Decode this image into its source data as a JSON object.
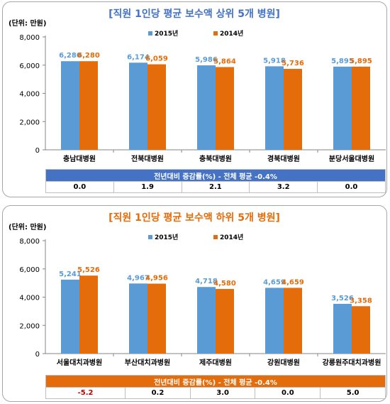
{
  "chart_data": [
    {
      "type": "bar",
      "title": "[직원 1인당 평균 보수액 상위 5개 병원]",
      "unit_label": "(단위: 만원)",
      "categories": [
        "충남대병원",
        "전북대병원",
        "충북대병원",
        "경북대병원",
        "분당서울대병원"
      ],
      "series": [
        {
          "name": "2015년",
          "color": "#5b9bd5",
          "label_color": "#5b9bd5",
          "values": [
            6280,
            6174,
            5986,
            5918,
            5895
          ]
        },
        {
          "name": "2014년",
          "color": "#e46c0a",
          "label_color": "#e46c0a",
          "values": [
            6280,
            6059,
            5864,
            5736,
            5895
          ]
        }
      ],
      "ylim": [
        0,
        8000
      ],
      "yticks": [
        0,
        2000,
        4000,
        6000,
        8000
      ],
      "ytick_labels": [
        "0",
        "2,000",
        "4,000",
        "6,000",
        "8,000"
      ],
      "value_labels_2015": [
        "6,280",
        "6,174",
        "5,986",
        "5,918",
        "5,895"
      ],
      "value_labels_2014": [
        "6,280",
        "6,059",
        "5,864",
        "5,736",
        "5,895"
      ],
      "legend_position": "top",
      "title_color": "#4472c4",
      "table": {
        "header": "전년대비 증감률(%) - 전체 평균 -0.4%",
        "values": [
          "0.0",
          "1.9",
          "2.1",
          "3.2",
          "0.0"
        ]
      }
    },
    {
      "type": "bar",
      "title": "[직원 1인당 평균 보수액 하위 5개 병원]",
      "unit_label": "(단위: 만원)",
      "categories": [
        "서울대치과병원",
        "부산대치과병원",
        "제주대병원",
        "강원대병원",
        "강릉원주대치과병원"
      ],
      "series": [
        {
          "name": "2015년",
          "color": "#5b9bd5",
          "label_color": "#5b9bd5",
          "values": [
            5241,
            4967,
            4718,
            4659,
            3526
          ]
        },
        {
          "name": "2014년",
          "color": "#e46c0a",
          "label_color": "#e46c0a",
          "values": [
            5526,
            4956,
            4580,
            4659,
            3358
          ]
        }
      ],
      "ylim": [
        0,
        8000
      ],
      "yticks": [
        0,
        2000,
        4000,
        6000,
        8000
      ],
      "ytick_labels": [
        "0",
        "2,000",
        "4,000",
        "6,000",
        "8,000"
      ],
      "value_labels_2015": [
        "5,241",
        "4,967",
        "4,718",
        "4,659",
        "3,526"
      ],
      "value_labels_2014": [
        "5,526",
        "4,956",
        "4,580",
        "4,659",
        "3,358"
      ],
      "legend_position": "top",
      "title_color": "#e46c0a",
      "table": {
        "header": "전년대비 증감률(%) - 전체 평균 -0.4%",
        "values": [
          "-5.2",
          "0.2",
          "3.0",
          "0.0",
          "5.0"
        ],
        "negative_color": "#c00000"
      }
    }
  ]
}
